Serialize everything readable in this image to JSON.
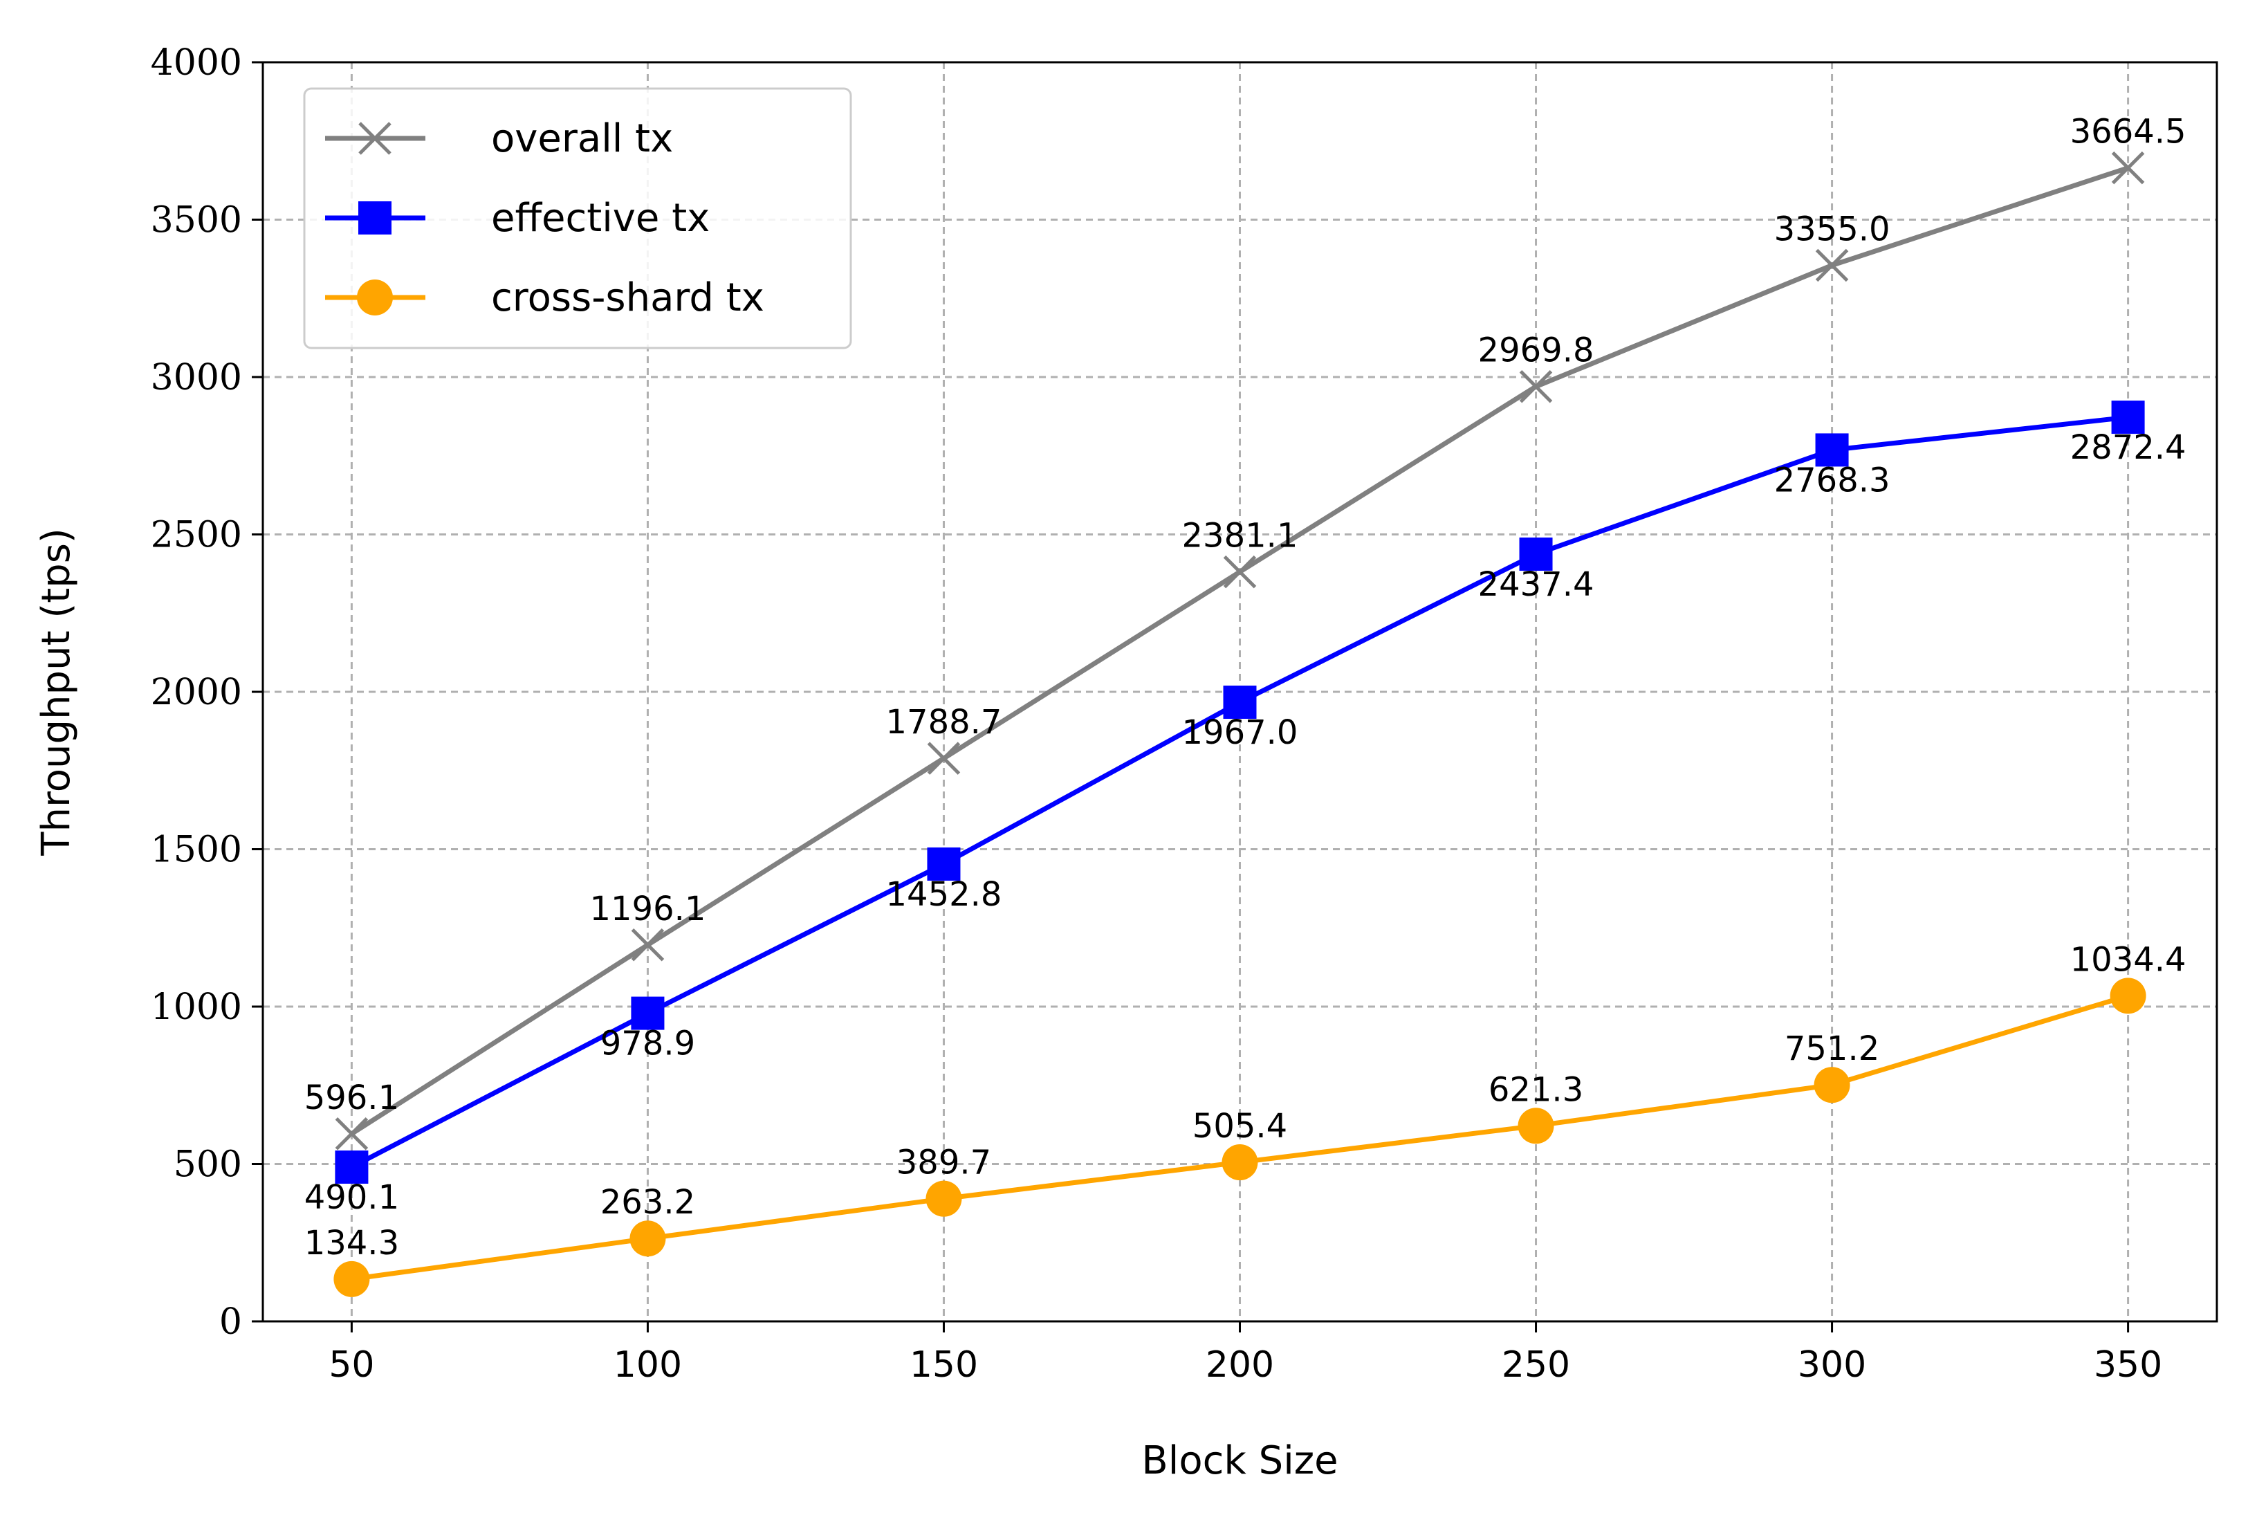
{
  "chart_data": {
    "type": "line",
    "title": "",
    "xlabel": "Block Size",
    "ylabel": "Throughput (tps)",
    "x": [
      50,
      100,
      150,
      200,
      250,
      300,
      350
    ],
    "x_tick_labels": [
      "50",
      "100",
      "150",
      "200",
      "250",
      "300",
      "350"
    ],
    "ylim": [
      0,
      4000
    ],
    "xlim": [
      35,
      365
    ],
    "y_ticks": [
      0,
      500,
      1000,
      1500,
      2000,
      2500,
      3000,
      3500,
      4000
    ],
    "y_tick_labels": [
      "0",
      "500",
      "1000",
      "1500",
      "2000",
      "2500",
      "3000",
      "3500",
      "4000"
    ],
    "grid": true,
    "legend_position": "top-left",
    "series": [
      {
        "name": "overall tx",
        "color": "#808080",
        "marker": "x",
        "label_position": "above",
        "values": [
          596.1,
          1196.1,
          1788.7,
          2381.1,
          2969.8,
          3355.0,
          3664.5
        ],
        "labels": [
          "596.1",
          "1196.1",
          "1788.7",
          "2381.1",
          "2969.8",
          "3355.0",
          "3664.5"
        ]
      },
      {
        "name": "effective tx",
        "color": "#0000ff",
        "marker": "square",
        "label_position": "below",
        "values": [
          490.1,
          978.9,
          1452.8,
          1967.0,
          2437.4,
          2768.3,
          2872.4
        ],
        "labels": [
          "490.1",
          "978.9",
          "1452.8",
          "1967.0",
          "2437.4",
          "2768.3",
          "2872.4"
        ]
      },
      {
        "name": "cross-shard tx",
        "color": "#ffa500",
        "marker": "circle",
        "label_position": "above",
        "values": [
          134.3,
          263.2,
          389.7,
          505.4,
          621.3,
          751.2,
          1034.4
        ],
        "labels": [
          "134.3",
          "263.2",
          "389.7",
          "505.4",
          "621.3",
          "751.2",
          "1034.4"
        ]
      }
    ]
  }
}
